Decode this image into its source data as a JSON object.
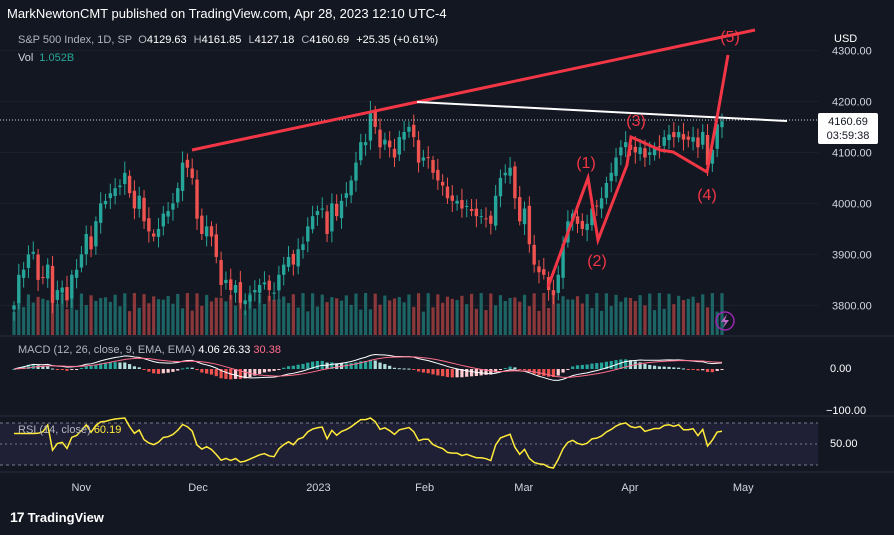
{
  "header": {
    "published_line": "MarkNewtonCMT published on TradingView.com, Apr 28, 2023 12:10 UTC-4"
  },
  "legend": {
    "symbol": "S&P 500 Index, 1D, SP",
    "open_label": "O",
    "open": "4129.63",
    "high_label": "H",
    "high": "4161.85",
    "low_label": "L",
    "low": "4127.18",
    "close_label": "C",
    "close": "4160.69",
    "change": "+25.35 (+0.61%)",
    "vol_label": "Vol",
    "vol_value": "1.052B"
  },
  "price_axis": {
    "currency": "USD",
    "last_price": "4160.69",
    "countdown": "03:59:38"
  },
  "macd": {
    "label": "MACD (12, 26, close, 9, EMA, EMA)",
    "macd_value": "4.06",
    "signal_value": "26.33",
    "hist_value": "30.38",
    "axis_ticks": [
      "0.00",
      "−100.00"
    ]
  },
  "rsi": {
    "label": "RSI (14, close)",
    "value": "60.19",
    "axis_ticks": [
      "50.00"
    ]
  },
  "colors": {
    "background": "#131722",
    "up": "#26a69a",
    "down": "#ef5350",
    "annotation": "#f23645",
    "trendline": "#ffffff",
    "rsi_line": "#ffeb3b",
    "macd_line": "#ffffff",
    "signal_line": "#ff6d8a"
  },
  "chart_data": {
    "type": "candlestick",
    "title": "S&P 500 Index, 1D, SP",
    "yaxis_ticks": [
      3800,
      3900,
      4000,
      4100,
      4200,
      4300
    ],
    "ylim": [
      3740,
      4340
    ],
    "x_ticks": [
      "Nov",
      "Dec",
      "2023",
      "Feb",
      "Mar",
      "Apr",
      "May"
    ],
    "series": [
      {
        "name": "price",
        "values": [
          3800,
          3860,
          3870,
          3900,
          3905,
          3850,
          3855,
          3880,
          3805,
          3830,
          3835,
          3810,
          3860,
          3870,
          3900,
          3940,
          3910,
          3965,
          4000,
          4005,
          4020,
          4030,
          4035,
          4060,
          4020,
          3990,
          4015,
          3965,
          3945,
          3935,
          3950,
          3980,
          3985,
          4000,
          4030,
          4080,
          4070,
          4050,
          3970,
          3940,
          3955,
          3935,
          3895,
          3840,
          3850,
          3830,
          3840,
          3805,
          3810,
          3820,
          3830,
          3840,
          3845,
          3830,
          3825,
          3860,
          3880,
          3895,
          3880,
          3910,
          3920,
          3955,
          3975,
          3985,
          3990,
          3940,
          4000,
          3975,
          4005,
          4020,
          4045,
          4080,
          4120,
          4120,
          4180,
          4150,
          4110,
          4125,
          4110,
          4090,
          4130,
          4140,
          4150,
          4130,
          4080,
          4090,
          4090,
          4060,
          4045,
          4035,
          4010,
          4005,
          4005,
          3990,
          3995,
          3985,
          3975,
          3975,
          3970,
          3960,
          4015,
          4050,
          4060,
          4070,
          4010,
          3965,
          3990,
          3920,
          3880,
          3865,
          3860,
          3830,
          3820,
          3860,
          3920,
          3965,
          3980,
          3960,
          3950,
          3960,
          3990,
          3995,
          4010,
          4040,
          4060,
          4090,
          4110,
          4120,
          4105,
          4100,
          4110,
          4090,
          4100,
          4110,
          4110,
          4130,
          4135,
          4130,
          4140,
          4125,
          4125,
          4130,
          4110,
          4140,
          4075,
          4105,
          4155,
          4161
        ]
      }
    ],
    "annotations": {
      "wave_labels": [
        "(1)",
        "(2)",
        "(3)",
        "(4)",
        "(5)"
      ]
    }
  }
}
